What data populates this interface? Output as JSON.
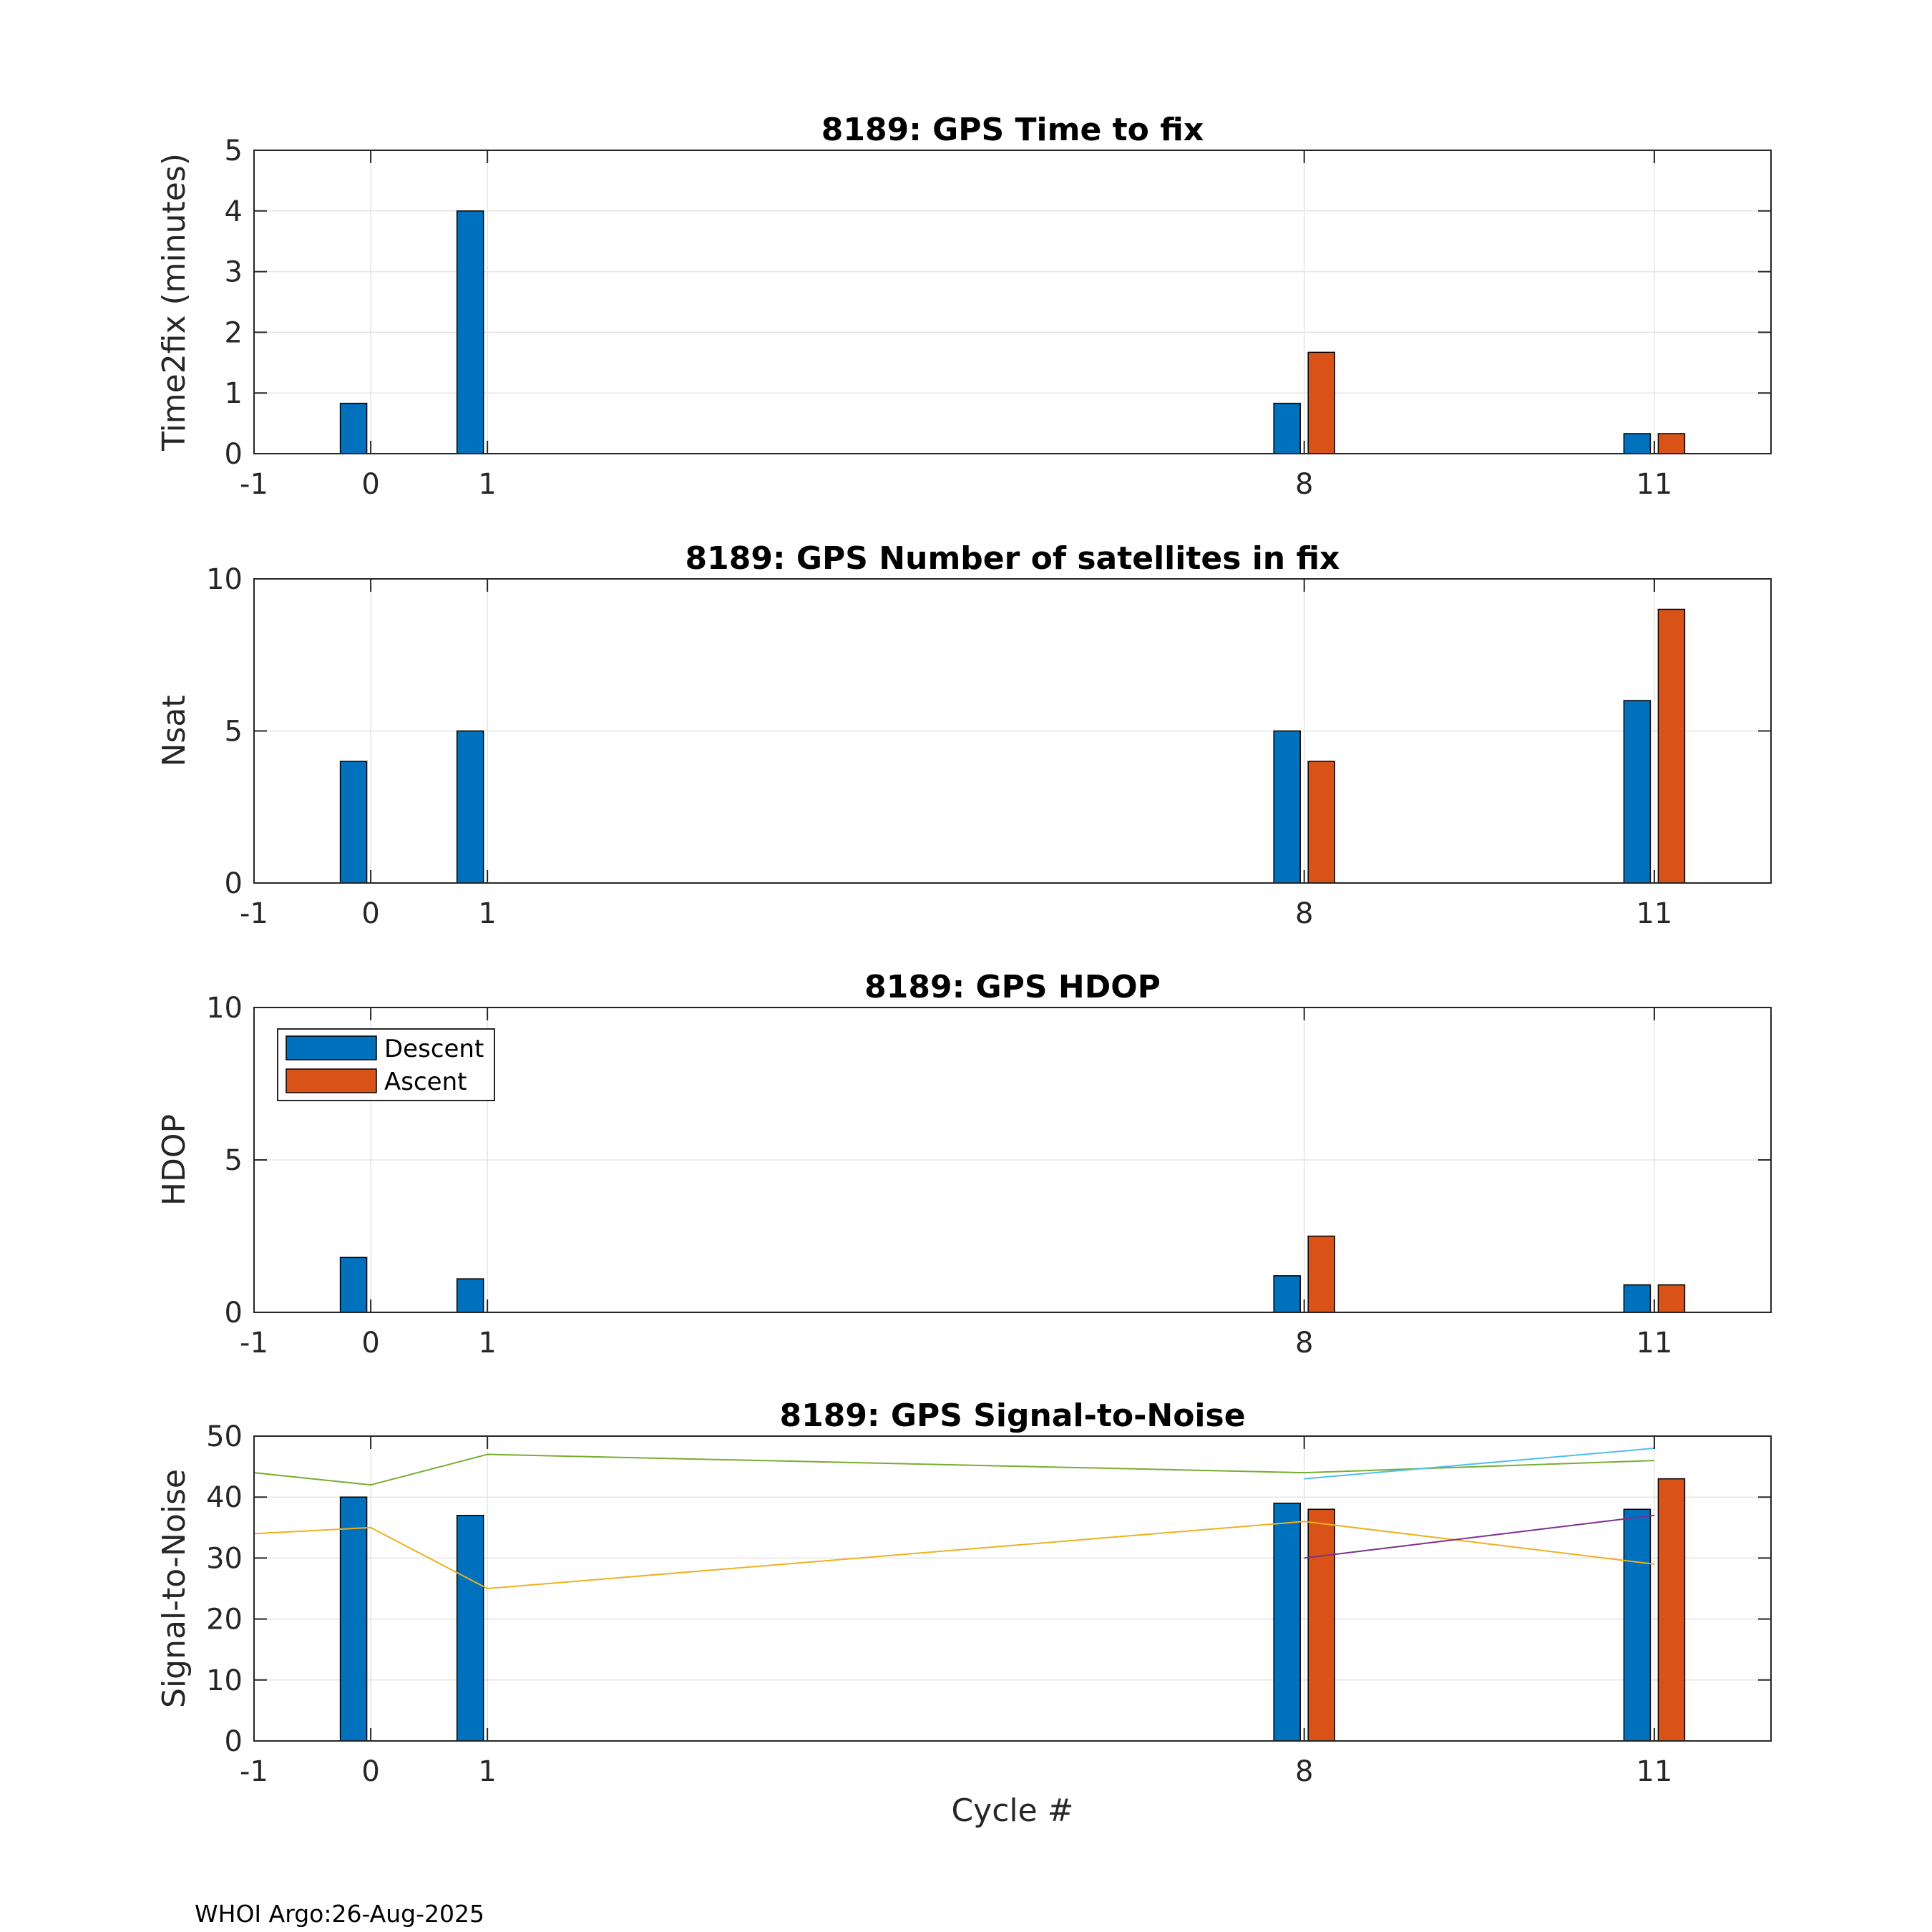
{
  "footer": "WHOI Argo:26-Aug-2025",
  "xlabel": "Cycle #",
  "colors": {
    "descent": "#0072BD",
    "ascent": "#D95319",
    "grid": "#E5E5E5",
    "axis": "#262626"
  },
  "legend": {
    "descent": "Descent",
    "ascent": "Ascent"
  },
  "chart_data": [
    {
      "type": "bar",
      "title": "8189: GPS Time to fix",
      "ylabel": "Time2fix (minutes)",
      "ylim": [
        0,
        5
      ],
      "yticks": [
        0,
        1,
        2,
        3,
        4,
        5
      ],
      "ytick_labels": [
        "0",
        "1",
        "2",
        "3",
        "4",
        "5"
      ],
      "xlim": [
        -1,
        12
      ],
      "xticks": [
        -1,
        0,
        1,
        8,
        11
      ],
      "xtick_labels": [
        "-1",
        "0",
        "1",
        "8",
        "11"
      ],
      "categories": [
        0,
        1,
        8,
        11
      ],
      "series": [
        {
          "name": "Descent",
          "values": [
            0.83,
            4,
            0.83,
            0.33
          ]
        },
        {
          "name": "Ascent",
          "values": [
            null,
            null,
            1.67,
            0.33
          ]
        }
      ]
    },
    {
      "type": "bar",
      "title": "8189: GPS Number of satellites in fix",
      "ylabel": "Nsat",
      "ylim": [
        0,
        10
      ],
      "yticks": [
        0,
        5,
        10
      ],
      "ytick_labels": [
        "0",
        "5",
        "10"
      ],
      "xlim": [
        -1,
        12
      ],
      "xticks": [
        -1,
        0,
        1,
        8,
        11
      ],
      "xtick_labels": [
        "-1",
        "0",
        "1",
        "8",
        "11"
      ],
      "categories": [
        0,
        1,
        8,
        11
      ],
      "series": [
        {
          "name": "Descent",
          "values": [
            4,
            5,
            5,
            6
          ]
        },
        {
          "name": "Ascent",
          "values": [
            null,
            null,
            4,
            9
          ]
        }
      ]
    },
    {
      "type": "bar",
      "title": "8189: GPS HDOP",
      "ylabel": "HDOP",
      "ylim": [
        0,
        10
      ],
      "yticks": [
        0,
        5,
        10
      ],
      "ytick_labels": [
        "0",
        "5",
        "10"
      ],
      "xlim": [
        -1,
        12
      ],
      "xticks": [
        -1,
        0,
        1,
        8,
        11
      ],
      "xtick_labels": [
        "-1",
        "0",
        "1",
        "8",
        "11"
      ],
      "legend_position": "top-left",
      "categories": [
        0,
        1,
        8,
        11
      ],
      "series": [
        {
          "name": "Descent",
          "values": [
            1.8,
            1.1,
            1.2,
            0.9
          ]
        },
        {
          "name": "Ascent",
          "values": [
            null,
            null,
            2.5,
            0.9
          ]
        }
      ]
    },
    {
      "type": "bar",
      "title": "8189: GPS Signal-to-Noise",
      "ylabel": "Signal-to-Noise",
      "ylim": [
        0,
        50
      ],
      "yticks": [
        0,
        10,
        20,
        30,
        40,
        50
      ],
      "ytick_labels": [
        "0",
        "10",
        "20",
        "30",
        "40",
        "50"
      ],
      "xlim": [
        -1,
        12
      ],
      "xticks": [
        -1,
        0,
        1,
        8,
        11
      ],
      "xtick_labels": [
        "-1",
        "0",
        "1",
        "8",
        "11"
      ],
      "categories": [
        0,
        1,
        8,
        11
      ],
      "series": [
        {
          "name": "Descent",
          "values": [
            40,
            37,
            39,
            38
          ]
        },
        {
          "name": "Ascent",
          "values": [
            null,
            null,
            38,
            43
          ]
        }
      ],
      "lines": [
        {
          "color": "#77AC30",
          "x": [
            -1,
            0,
            1,
            8,
            11
          ],
          "y": [
            44,
            42,
            47,
            44,
            46
          ]
        },
        {
          "color": "#EDB120",
          "x": [
            -1,
            0,
            1,
            8,
            11
          ],
          "y": [
            34,
            35,
            25,
            36,
            29
          ]
        },
        {
          "color": "#4DBEEE",
          "x": [
            8,
            11
          ],
          "y": [
            43,
            48
          ]
        },
        {
          "color": "#7E2F8E",
          "x": [
            8,
            11
          ],
          "y": [
            30,
            37
          ]
        }
      ]
    }
  ]
}
